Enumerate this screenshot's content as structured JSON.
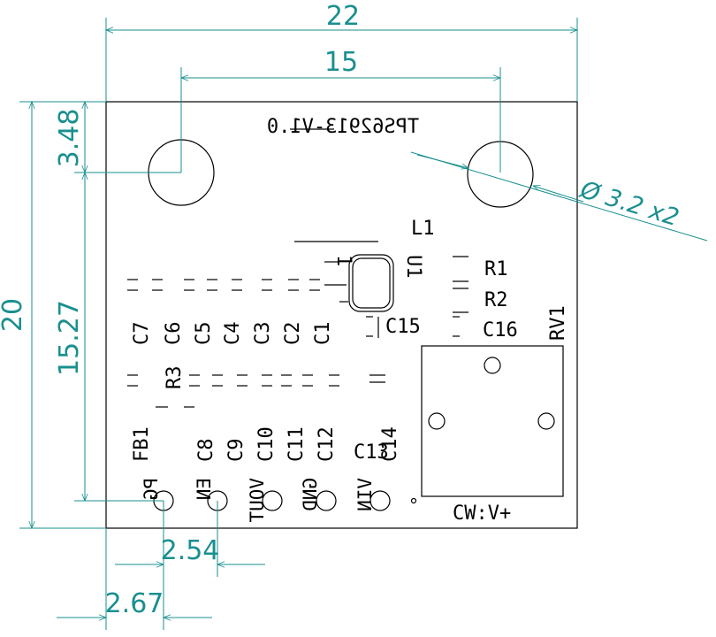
{
  "board": {
    "title_mirrored": "TPS62913-V1.0",
    "ref_L1": "L1",
    "ref_R1": "R1",
    "ref_R2": "R2",
    "ref_U1": "U1",
    "ref_C15": "C15",
    "ref_C16": "C16",
    "ref_RV1": "RV1",
    "ref_C7": "C7",
    "ref_C6": "C6",
    "ref_C5": "C5",
    "ref_C4": "C4",
    "ref_C3": "C3",
    "ref_C2": "C2",
    "ref_C1": "C1",
    "ref_R3": "R3",
    "ref_FB1": "FB1",
    "ref_C8": "C8",
    "ref_C9": "C9",
    "ref_C10": "C10",
    "ref_C11": "C11",
    "ref_C12": "C12",
    "ref_C13": "C13",
    "ref_C14": "C14",
    "pin_labels_mirrored": [
      "PG",
      "EN",
      "VOUT",
      "GND",
      "VIN"
    ],
    "pot_label": "CW:V+"
  },
  "dimensions": {
    "width_total": "22",
    "hole_spacing": "15",
    "hole_offset_top": "3.48",
    "height_total": "20",
    "hole_to_pins": "15.27",
    "pin_pitch": "2.54",
    "pin_offset_left": "2.67",
    "hole_diameter": "Ø 3.2 x2"
  },
  "colors": {
    "dimension": "#1a8f8f",
    "silkscreen": "#000000"
  }
}
